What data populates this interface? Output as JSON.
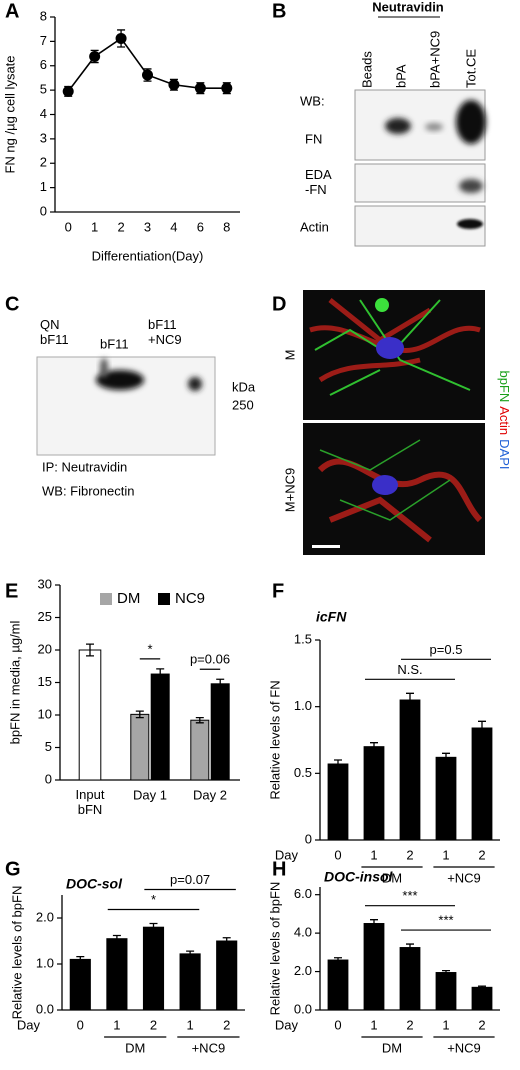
{
  "chart_data": [
    {
      "panel": "A",
      "type": "line",
      "categories": [
        "0",
        "1",
        "2",
        "3",
        "4",
        "6",
        "8"
      ],
      "values": [
        4.95,
        6.38,
        7.12,
        5.62,
        5.22,
        5.08,
        5.08
      ],
      "errors": [
        0.2,
        0.25,
        0.35,
        0.25,
        0.22,
        0.22,
        0.22
      ],
      "color": "#000000",
      "ylim": [
        0,
        8
      ],
      "yticks": [
        0,
        1,
        2,
        3,
        4,
        5,
        6,
        7,
        8
      ],
      "ylabel": "FN ng /µg cell lysate",
      "xlabel": "Differentiation(Day)"
    },
    {
      "panel": "E",
      "type": "bar",
      "categories": [
        "Input\nbFN",
        "Day 1",
        "Day 2"
      ],
      "input_values": [
        20,
        null,
        null
      ],
      "input_errors": [
        0.9,
        null,
        null
      ],
      "input_color": "#ffffff",
      "series": [
        {
          "name": "DM",
          "color": "#a6a6a6",
          "values": [
            null,
            10.1,
            9.2
          ],
          "errors": [
            null,
            0.5,
            0.4
          ]
        },
        {
          "name": "NC9",
          "color": "#000000",
          "values": [
            null,
            16.3,
            14.8
          ],
          "errors": [
            null,
            0.8,
            0.7
          ]
        }
      ],
      "ylim": [
        0,
        30
      ],
      "yticks": [
        0,
        5,
        10,
        15,
        20,
        25,
        30
      ],
      "ylabel": "bpFN in media, µg/ml",
      "brackets": [
        {
          "label": "*",
          "category": 1
        },
        {
          "label": "p=0.06",
          "category": 2
        }
      ]
    },
    {
      "panel": "F",
      "type": "bar",
      "title": "icFN",
      "categories": [
        "0",
        "1",
        "2",
        "1",
        "2"
      ],
      "values": [
        0.57,
        0.7,
        1.05,
        0.62,
        0.84
      ],
      "errors": [
        0.03,
        0.03,
        0.05,
        0.03,
        0.05
      ],
      "color": "#000000",
      "ylim": [
        0,
        1.5
      ],
      "yticks": [
        0,
        0.5,
        {
          "value": 1,
          "label": "1.0"
        },
        1.5
      ],
      "ylabel": "Relative levels of FN",
      "xlabel": "Day",
      "groups": [
        {
          "label": "DM",
          "from": 1,
          "to": 2
        },
        {
          "label": "+NC9",
          "from": 3,
          "to": 4
        }
      ],
      "brackets": [
        {
          "label": "N.S.",
          "from": 1,
          "to": 3
        },
        {
          "label": "p=0.5",
          "from": 2,
          "to": 4
        }
      ]
    },
    {
      "panel": "G",
      "type": "bar",
      "title": "DOC-sol",
      "categories": [
        "0",
        "1",
        "2",
        "1",
        "2"
      ],
      "values": [
        1.1,
        1.55,
        1.8,
        1.22,
        1.5
      ],
      "errors": [
        0.06,
        0.07,
        0.08,
        0.06,
        0.07
      ],
      "color": "#000000",
      "ylim": [
        0,
        2.5
      ],
      "yticks": [
        {
          "value": 0,
          "label": "0.0"
        },
        {
          "value": 1,
          "label": "1.0"
        },
        {
          "value": 2,
          "label": "2.0"
        }
      ],
      "ylabel": "Relative levels of bpFN",
      "xlabel": "Day",
      "groups": [
        {
          "label": "DM",
          "from": 1,
          "to": 2
        },
        {
          "label": "+NC9",
          "from": 3,
          "to": 4
        }
      ],
      "brackets": [
        {
          "label": "*",
          "from": 1,
          "to": 3
        },
        {
          "label": "p=0.07",
          "from": 2,
          "to": 4
        }
      ]
    },
    {
      "panel": "H",
      "type": "bar",
      "title": "DOC-insol",
      "categories": [
        "0",
        "1",
        "2",
        "1",
        "2"
      ],
      "values": [
        2.6,
        4.5,
        3.25,
        1.95,
        1.18
      ],
      "errors": [
        0.12,
        0.2,
        0.18,
        0.1,
        0.06
      ],
      "color": "#000000",
      "ylim": [
        0,
        6.4
      ],
      "yticks": [
        {
          "value": 0,
          "label": "0.0"
        },
        {
          "value": 2,
          "label": "2.0"
        },
        {
          "value": 4,
          "label": "4.0"
        },
        {
          "value": 6,
          "label": "6.0"
        }
      ],
      "ylabel": "Relative levels of bpFN",
      "xlabel": "Day",
      "groups": [
        {
          "label": "DM",
          "from": 1,
          "to": 2
        },
        {
          "label": "+NC9",
          "from": 3,
          "to": 4
        }
      ],
      "brackets": [
        {
          "label": "***",
          "from": 1,
          "to": 3
        },
        {
          "label": "***",
          "from": 2,
          "to": 4
        }
      ]
    }
  ],
  "blot_b": {
    "panel": "B",
    "header": "Neutravidin",
    "lanes": [
      "Beads",
      "bPA",
      "bPA+NC9",
      "Tot.CE"
    ],
    "rows": [
      "WB:",
      "FN",
      "EDA\n-FN",
      "Actin"
    ]
  },
  "blot_c": {
    "panel": "C",
    "lanes": [
      "QN\nbF11",
      "bF11",
      "bF11\n+NC9"
    ],
    "marker_unit": "kDa",
    "marker": "250",
    "notes": [
      "IP: Neutravidin",
      "WB: Fibronectin"
    ]
  },
  "image_d": {
    "panel": "D",
    "conditions": [
      "M",
      "M+NC9"
    ],
    "stains": [
      {
        "label": "bpFN",
        "color": "#1aa01a"
      },
      {
        "label": "Actin",
        "color": "#e00000"
      },
      {
        "label": "DAPI",
        "color": "#1f5fd6"
      }
    ]
  }
}
